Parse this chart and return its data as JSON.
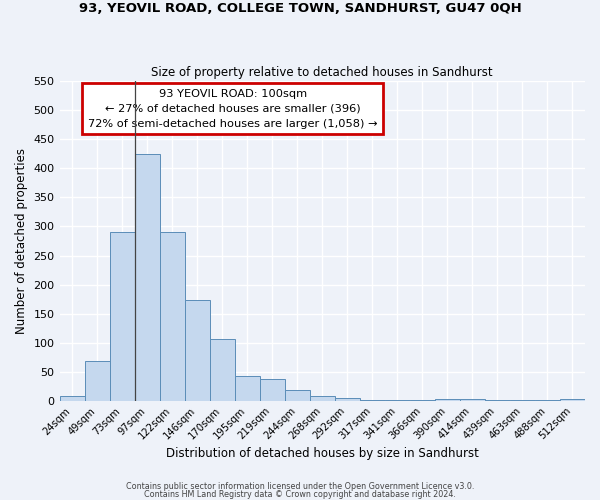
{
  "title": "93, YEOVIL ROAD, COLLEGE TOWN, SANDHURST, GU47 0QH",
  "subtitle": "Size of property relative to detached houses in Sandhurst",
  "xlabel": "Distribution of detached houses by size in Sandhurst",
  "ylabel": "Number of detached properties",
  "bar_labels": [
    "24sqm",
    "49sqm",
    "73sqm",
    "97sqm",
    "122sqm",
    "146sqm",
    "170sqm",
    "195sqm",
    "219sqm",
    "244sqm",
    "268sqm",
    "292sqm",
    "317sqm",
    "341sqm",
    "366sqm",
    "390sqm",
    "414sqm",
    "439sqm",
    "463sqm",
    "488sqm",
    "512sqm"
  ],
  "bar_values": [
    8,
    69,
    291,
    425,
    291,
    174,
    106,
    43,
    38,
    19,
    8,
    5,
    1,
    1,
    1,
    4,
    4,
    1,
    1,
    1,
    3
  ],
  "bar_color": "#c5d8ee",
  "bar_edge_color": "#5b8db8",
  "background_color": "#eef2f9",
  "grid_color": "#ffffff",
  "ylim": [
    0,
    550
  ],
  "yticks": [
    0,
    50,
    100,
    150,
    200,
    250,
    300,
    350,
    400,
    450,
    500,
    550
  ],
  "annotation_title": "93 YEOVIL ROAD: 100sqm",
  "annotation_line1": "← 27% of detached houses are smaller (396)",
  "annotation_line2": "72% of semi-detached houses are larger (1,058) →",
  "annotation_box_color": "#ffffff",
  "annotation_box_edge_color": "#cc0000",
  "vline_bar_index": 3,
  "footer_line1": "Contains HM Land Registry data © Crown copyright and database right 2024.",
  "footer_line2": "Contains public sector information licensed under the Open Government Licence v3.0."
}
